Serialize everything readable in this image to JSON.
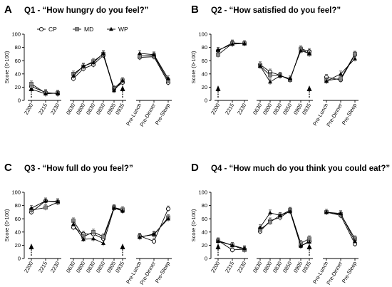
{
  "legend": [
    {
      "name": "CP",
      "marker": "circle-open"
    },
    {
      "name": "MD",
      "marker": "square-grey"
    },
    {
      "name": "WP",
      "marker": "triangle-black"
    }
  ],
  "chart_data": [
    {
      "panel": "A",
      "title": "Q1 - “How hungry do you feel?”",
      "type": "line",
      "ylabel": "Score (0-100)",
      "ylim": [
        0,
        100
      ],
      "yticks": [
        "0",
        "20",
        "40",
        "60",
        "80",
        "100"
      ],
      "categories": [
        "2200",
        "2215",
        "2230",
        "0630",
        "0800",
        "0830",
        "0850",
        "0905",
        "0935",
        "Pre-Lunch",
        "Pre-Dinner",
        "Pre-Sleep"
      ],
      "arrows": [
        "2200",
        "0935"
      ],
      "series": [
        {
          "name": "CP",
          "values": [
            21,
            12,
            10,
            33,
            48,
            54,
            68,
            17,
            27,
            65,
            66,
            27
          ]
        },
        {
          "name": "MD",
          "values": [
            25,
            11,
            11,
            40,
            51,
            59,
            70,
            18,
            30,
            67,
            68,
            30
          ]
        },
        {
          "name": "WP",
          "values": [
            17,
            10,
            11,
            37,
            52,
            57,
            71,
            15,
            30,
            71,
            69,
            33
          ]
        }
      ]
    },
    {
      "panel": "B",
      "title": "Q2 - “How satisfied do you feel?”",
      "type": "line",
      "ylabel": "Score (0-100)",
      "ylim": [
        0,
        100
      ],
      "yticks": [
        "0",
        "20",
        "40",
        "60",
        "80",
        "100"
      ],
      "categories": [
        "2200",
        "2215",
        "2230",
        "0630",
        "0800",
        "0830",
        "0850",
        "0905",
        "0935",
        "Pre-Lunch",
        "Pre-Dinner",
        "Pre-Sleep"
      ],
      "arrows": [
        "2200",
        "0935"
      ],
      "series": [
        {
          "name": "CP",
          "values": [
            75,
            87,
            86,
            54,
            43,
            38,
            31,
            78,
            74,
            35,
            31,
            69
          ]
        },
        {
          "name": "MD",
          "values": [
            69,
            86,
            86,
            52,
            38,
            38,
            31,
            78,
            70,
            30,
            33,
            70
          ]
        },
        {
          "name": "WP",
          "values": [
            76,
            85,
            86,
            52,
            28,
            37,
            33,
            75,
            71,
            29,
            40,
            63
          ]
        }
      ]
    },
    {
      "panel": "C",
      "title": "Q3 - “How full do you feel?”",
      "type": "line",
      "ylabel": "Score (0-100)",
      "ylim": [
        0,
        100
      ],
      "yticks": [
        "0",
        "20",
        "40",
        "60",
        "80",
        "100"
      ],
      "categories": [
        "2200",
        "2215",
        "2230",
        "0630",
        "0800",
        "0830",
        "0850",
        "0905",
        "0935",
        "Pre-Lunch",
        "Pre-Dinner",
        "Pre-Sleep"
      ],
      "arrows": [
        "2200",
        "0935"
      ],
      "series": [
        {
          "name": "CP",
          "values": [
            70,
            87,
            85,
            47,
            37,
            37,
            30,
            77,
            72,
            34,
            26,
            75
          ]
        },
        {
          "name": "MD",
          "values": [
            73,
            77,
            85,
            57,
            33,
            40,
            33,
            77,
            74,
            33,
            36,
            62
          ]
        },
        {
          "name": "WP",
          "values": [
            76,
            87,
            86,
            52,
            29,
            30,
            23,
            76,
            72,
            32,
            37,
            60
          ]
        }
      ]
    },
    {
      "panel": "D",
      "title": "Q4 - “How much do you think you could eat?”",
      "type": "line",
      "ylabel": "Score (0-100)",
      "ylim": [
        0,
        100
      ],
      "yticks": [
        "0",
        "20",
        "40",
        "60",
        "80",
        "100"
      ],
      "categories": [
        "2200",
        "2215",
        "2230",
        "0630",
        "0800",
        "0830",
        "0850",
        "0905",
        "0935",
        "Pre-Lunch",
        "Pre-Dinner",
        "Pre-Sleep"
      ],
      "arrows": [
        "2200",
        "0935"
      ],
      "series": [
        {
          "name": "CP",
          "values": [
            27,
            13,
            14,
            41,
            57,
            62,
            72,
            19,
            26,
            70,
            65,
            22
          ]
        },
        {
          "name": "MD",
          "values": [
            27,
            20,
            13,
            44,
            55,
            65,
            73,
            23,
            30,
            70,
            67,
            30
          ]
        },
        {
          "name": "WP",
          "values": [
            26,
            20,
            15,
            47,
            69,
            65,
            71,
            19,
            25,
            70,
            68,
            26
          ]
        }
      ]
    }
  ]
}
